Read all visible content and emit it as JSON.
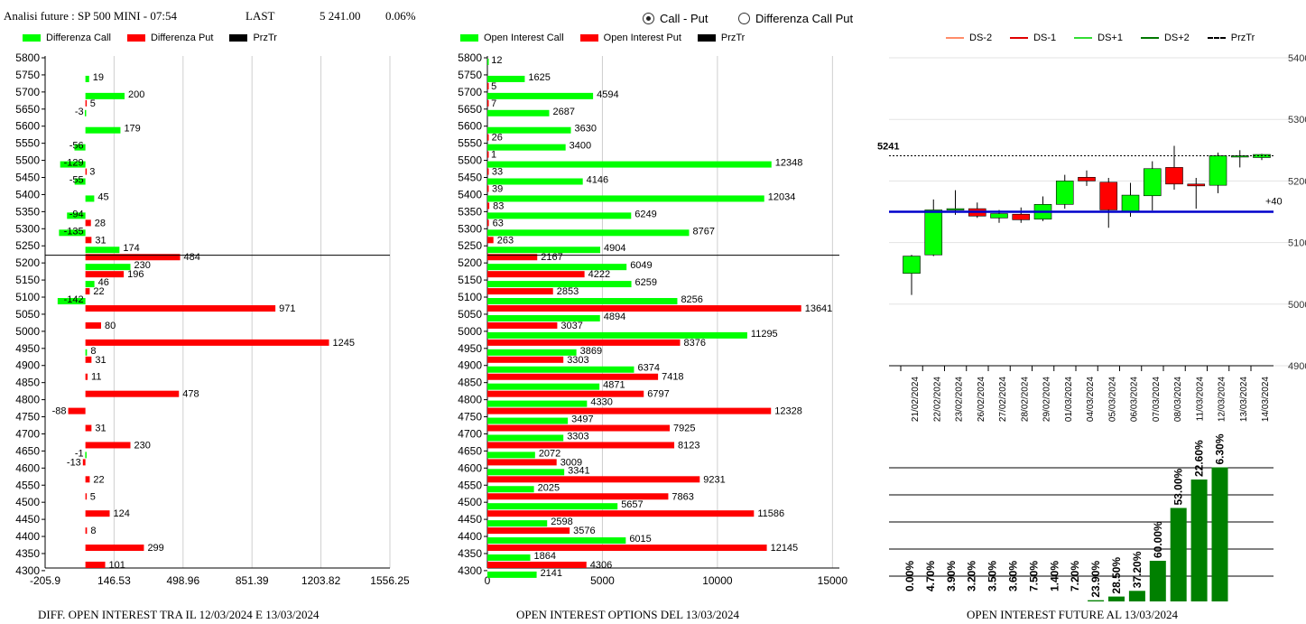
{
  "header": {
    "title": "Analisi future : SP 500 MINI - 07:54",
    "last_label": "LAST",
    "last_value": "5 241.00",
    "change": "0.06%"
  },
  "radio": {
    "option1": "Call - Put",
    "option2": "Differenza Call Put",
    "selected": "option1"
  },
  "legend1": [
    {
      "label": "Differenza Call",
      "color": "#00ff00"
    },
    {
      "label": "Differenza Put",
      "color": "#ff0000"
    },
    {
      "label": "PrzTr",
      "color": "#000000"
    }
  ],
  "legend2": [
    {
      "label": "Open Interest Call",
      "color": "#00ff00"
    },
    {
      "label": "Open Interest Put",
      "color": "#ff0000"
    },
    {
      "label": "PrzTr",
      "color": "#000000"
    }
  ],
  "legend3": [
    {
      "label": "DS-2",
      "color": "#ff8c69",
      "style": "solid"
    },
    {
      "label": "DS-1",
      "color": "#e00000",
      "style": "solid"
    },
    {
      "label": "DS+1",
      "color": "#33dd33",
      "style": "solid"
    },
    {
      "label": "DS+2",
      "color": "#007700",
      "style": "solid"
    },
    {
      "label": "PrzTr",
      "color": "#000000",
      "style": "dashed"
    }
  ],
  "captions": {
    "chart1": "DIFF. OPEN INTEREST TRA IL 12/03/2024 E 13/03/2024",
    "chart2": "OPEN INTEREST OPTIONS DEL 13/03/2024",
    "chart3": "OPEN INTEREST FUTURE AL 13/03/2024"
  },
  "colors": {
    "call": "#00ff00",
    "put": "#ff0000",
    "blue_line": "#0000cc",
    "dark_green": "#008000"
  },
  "chart_data": [
    {
      "type": "bar",
      "orientation": "horizontal",
      "strikes": [
        5800,
        5750,
        5700,
        5650,
        5600,
        5550,
        5500,
        5450,
        5400,
        5350,
        5300,
        5250,
        5200,
        5150,
        5100,
        5050,
        5000,
        4950,
        4900,
        4850,
        4800,
        4750,
        4700,
        4650,
        4600,
        4550,
        4500,
        4450,
        4400,
        4350,
        4300
      ],
      "series": [
        {
          "name": "Differenza Call",
          "values": [
            null,
            19,
            200,
            -3,
            179,
            -56,
            -129,
            -55,
            45,
            -94,
            -135,
            174,
            230,
            46,
            -142,
            null,
            null,
            8,
            null,
            null,
            null,
            null,
            null,
            -1,
            null,
            null,
            null,
            null,
            null,
            null,
            null
          ]
        },
        {
          "name": "Differenza Put",
          "values": [
            null,
            null,
            5,
            null,
            null,
            null,
            3,
            null,
            null,
            28,
            31,
            484,
            196,
            22,
            971,
            80,
            1245,
            31,
            11,
            478,
            -88,
            31,
            230,
            -13,
            22,
            5,
            124,
            8,
            299,
            101,
            null
          ]
        }
      ],
      "x_ticks": [
        "-205.9",
        "146.53",
        "498.96",
        "851.39",
        "1203.82",
        "1556.25"
      ],
      "xlim": [
        -205.9,
        1556.25
      ],
      "price_line": 5241,
      "grid": "vertical"
    },
    {
      "type": "bar",
      "orientation": "horizontal",
      "strikes": [
        5800,
        5750,
        5700,
        5650,
        5600,
        5550,
        5500,
        5450,
        5400,
        5350,
        5300,
        5250,
        5200,
        5150,
        5100,
        5050,
        5000,
        4950,
        4900,
        4850,
        4800,
        4750,
        4700,
        4650,
        4600,
        4550,
        4500,
        4450,
        4400,
        4350,
        4300
      ],
      "series": [
        {
          "name": "Open Interest Call",
          "values": [
            12,
            1625,
            4594,
            2687,
            3630,
            3400,
            12348,
            4146,
            12034,
            6249,
            8767,
            4904,
            6049,
            6259,
            8256,
            4894,
            11295,
            3869,
            6374,
            4871,
            4330,
            3497,
            3303,
            2072,
            3341,
            2025,
            5657,
            2598,
            6015,
            1864,
            2141
          ]
        },
        {
          "name": "Open Interest Put",
          "values": [
            null,
            5,
            7,
            null,
            26,
            1,
            33,
            39,
            83,
            63,
            263,
            2167,
            4222,
            2853,
            13641,
            3037,
            8376,
            3303,
            7418,
            6797,
            12328,
            7925,
            8123,
            3009,
            9231,
            7863,
            11586,
            3576,
            12145,
            4306,
            null
          ]
        }
      ],
      "x_ticks": [
        "0",
        "5000",
        "10000",
        "15000"
      ],
      "xlim": [
        0,
        15300
      ],
      "price_line": 5241,
      "grid": "vertical"
    },
    {
      "type": "candlestick",
      "dates": [
        "21/02/2024",
        "22/02/2024",
        "23/02/2024",
        "26/02/2024",
        "27/02/2024",
        "28/02/2024",
        "29/02/2024",
        "01/03/2024",
        "04/03/2024",
        "05/03/2024",
        "06/03/2024",
        "07/03/2024",
        "08/03/2024",
        "11/03/2024",
        "12/03/2024",
        "13/03/2024",
        "14/03/2024"
      ],
      "candles": [
        {
          "o": 5050,
          "h": 5080,
          "l": 5015,
          "c": 5078
        },
        {
          "o": 5080,
          "h": 5170,
          "l": 5078,
          "c": 5153
        },
        {
          "o": 5153,
          "h": 5185,
          "l": 5145,
          "c": 5155
        },
        {
          "o": 5155,
          "h": 5165,
          "l": 5140,
          "c": 5143
        },
        {
          "o": 5140,
          "h": 5153,
          "l": 5132,
          "c": 5147
        },
        {
          "o": 5146,
          "h": 5157,
          "l": 5132,
          "c": 5137
        },
        {
          "o": 5138,
          "h": 5175,
          "l": 5135,
          "c": 5162
        },
        {
          "o": 5162,
          "h": 5210,
          "l": 5155,
          "c": 5200
        },
        {
          "o": 5206,
          "h": 5217,
          "l": 5192,
          "c": 5200
        },
        {
          "o": 5198,
          "h": 5205,
          "l": 5124,
          "c": 5153
        },
        {
          "o": 5150,
          "h": 5197,
          "l": 5142,
          "c": 5177
        },
        {
          "o": 5176,
          "h": 5232,
          "l": 5152,
          "c": 5220
        },
        {
          "o": 5222,
          "h": 5257,
          "l": 5186,
          "c": 5195
        },
        {
          "o": 5195,
          "h": 5205,
          "l": 5155,
          "c": 5192
        },
        {
          "o": 5193,
          "h": 5246,
          "l": 5180,
          "c": 5241
        },
        {
          "o": 5240,
          "h": 5250,
          "l": 5222,
          "c": 5241
        },
        {
          "o": 5238,
          "h": 5244,
          "l": 5234,
          "c": 5243
        }
      ],
      "y_ticks": [
        5400,
        5300,
        5200,
        5100,
        5000,
        4900
      ],
      "ylim": [
        4900,
        5400
      ],
      "price_line": 5241,
      "price_label": "5241",
      "blue_line": 5150,
      "blue_label": "+40"
    },
    {
      "type": "bar",
      "categories": [
        "21/02/2024",
        "22/02/2024",
        "23/02/2024",
        "26/02/2024",
        "27/02/2024",
        "28/02/2024",
        "29/02/2024",
        "01/03/2024",
        "04/03/2024",
        "05/03/2024",
        "06/03/2024",
        "07/03/2024",
        "08/03/2024",
        "11/03/2024",
        "12/03/2024",
        "13/03/2024"
      ],
      "values": [
        0.0,
        4.7,
        3.9,
        3.2,
        3.5,
        3.6,
        7.5,
        1.4,
        7.2,
        23.9,
        28.5,
        37.2,
        60.0,
        53.0,
        22.6,
        6.3
      ],
      "labels": [
        "0.00%",
        "4.70%",
        "3.90%",
        "3.20%",
        "3.50%",
        "3.60%",
        "7.50%",
        "1.40%",
        "7.20%",
        "23.90%",
        "28.50%",
        "37.20%",
        "60.00%",
        "53.00%",
        "22.60%",
        "6.30%"
      ],
      "bar_heights": [
        0,
        0,
        0,
        0,
        0,
        0,
        0,
        0,
        0,
        0.6,
        2.4,
        5.2,
        20,
        46,
        60,
        66
      ],
      "grid": "horizontal"
    }
  ]
}
